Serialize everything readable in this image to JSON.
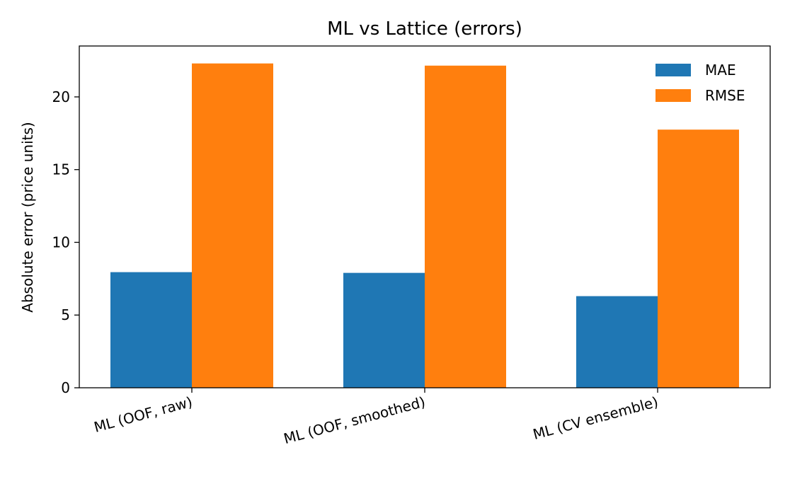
{
  "chart_data": {
    "type": "bar",
    "title": "ML vs Lattice (errors)",
    "xlabel": "",
    "ylabel": "Absolute error (price units)",
    "categories": [
      "ML (OOF, raw)",
      "ML (OOF, smoothed)",
      "ML (CV ensemble)"
    ],
    "series": [
      {
        "name": "MAE",
        "color": "#1f77b4",
        "values": [
          7.95,
          7.9,
          6.3
        ]
      },
      {
        "name": "RMSE",
        "color": "#ff7f0e",
        "values": [
          22.3,
          22.15,
          17.75
        ]
      }
    ],
    "ylim": [
      0,
      23.5
    ],
    "yticks": [
      0,
      5,
      10,
      15,
      20
    ],
    "grid": false,
    "legend_position": "top-right"
  }
}
